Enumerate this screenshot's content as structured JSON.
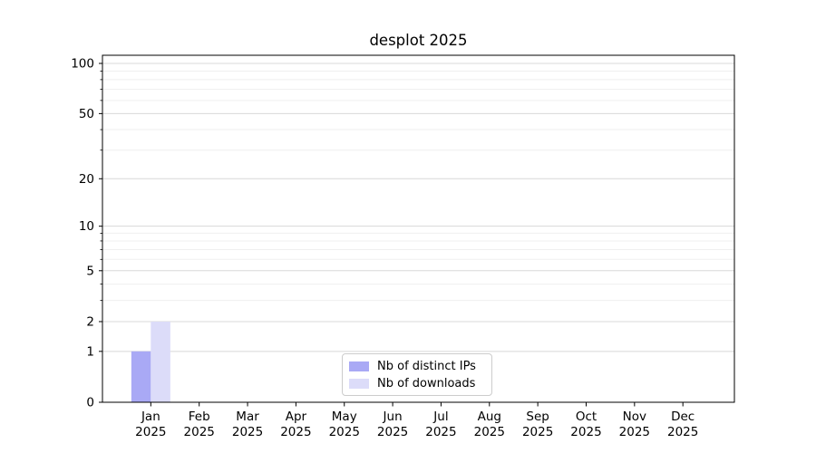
{
  "chart_data": {
    "type": "bar",
    "title": "desplot 2025",
    "categories": [
      {
        "month": "Jan",
        "year": "2025"
      },
      {
        "month": "Feb",
        "year": "2025"
      },
      {
        "month": "Mar",
        "year": "2025"
      },
      {
        "month": "Apr",
        "year": "2025"
      },
      {
        "month": "May",
        "year": "2025"
      },
      {
        "month": "Jun",
        "year": "2025"
      },
      {
        "month": "Jul",
        "year": "2025"
      },
      {
        "month": "Aug",
        "year": "2025"
      },
      {
        "month": "Sep",
        "year": "2025"
      },
      {
        "month": "Oct",
        "year": "2025"
      },
      {
        "month": "Nov",
        "year": "2025"
      },
      {
        "month": "Dec",
        "year": "2025"
      }
    ],
    "series": [
      {
        "name": "Nb of distinct IPs",
        "color": "#a9a9f5",
        "values": [
          1,
          0,
          0,
          0,
          0,
          0,
          0,
          0,
          0,
          0,
          0,
          0
        ]
      },
      {
        "name": "Nb of downloads",
        "color": "#dcdcf9",
        "values": [
          2,
          0,
          0,
          0,
          0,
          0,
          0,
          0,
          0,
          0,
          0,
          0
        ]
      }
    ],
    "yscale": "log1p",
    "ylim": [
      0,
      112
    ],
    "yticks": [
      {
        "label": "0",
        "value": 0
      },
      {
        "label": "1",
        "value": 1
      },
      {
        "label": "2",
        "value": 2
      },
      {
        "label": "5",
        "value": 5
      },
      {
        "label": "10",
        "value": 10
      },
      {
        "label": "20",
        "value": 20
      },
      {
        "label": "50",
        "value": 50
      },
      {
        "label": "100",
        "value": 100
      }
    ],
    "y_minor_ticks": [
      3,
      4,
      6,
      7,
      8,
      9,
      30,
      40,
      60,
      70,
      80,
      90
    ],
    "xlabel": "",
    "ylabel": "",
    "grid": "horizontal",
    "legend_position": "lower center",
    "colors": {
      "spine": "#000000",
      "major_grid": "#d8d8d8",
      "minor_grid": "#efefef",
      "text": "#000000",
      "legend_border": "#cccccc",
      "background": "#ffffff"
    }
  }
}
